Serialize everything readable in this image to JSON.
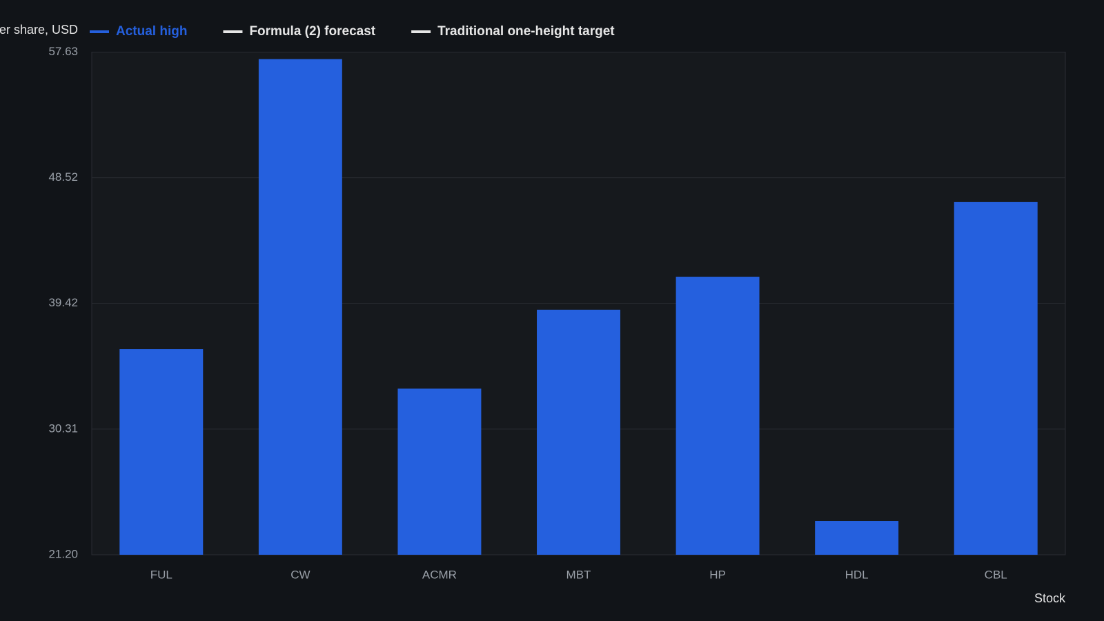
{
  "chart_data": {
    "type": "bar",
    "y_label": "er share, USD",
    "x_label": "Stock",
    "categories": [
      "FUL",
      "CW",
      "ACMR",
      "MBT",
      "HP",
      "HDL",
      "CBL"
    ],
    "series": [
      {
        "name": "Actual high",
        "color": "#2560de",
        "values": [
          36.1,
          57.12,
          33.24,
          38.96,
          41.35,
          23.65,
          46.76
        ]
      },
      {
        "name": "Formula (2) forecast",
        "color": "#e6e6e6",
        "values": [
          null,
          null,
          null,
          null,
          null,
          null,
          null
        ]
      },
      {
        "name": "Traditional one-height target",
        "color": "#e6e6e6",
        "values": [
          null,
          null,
          null,
          null,
          null,
          null,
          null
        ]
      }
    ],
    "ylim": [
      21.2,
      57.63
    ],
    "yticks": [
      {
        "value": 21.2,
        "label": "21.20"
      },
      30.31,
      39.42,
      48.52,
      57.63
    ],
    "grid": true
  }
}
